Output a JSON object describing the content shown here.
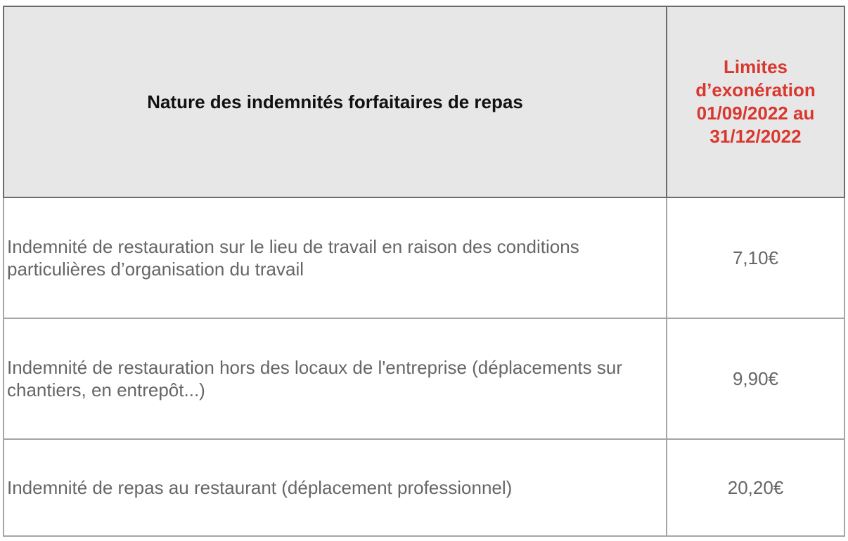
{
  "table": {
    "headers": [
      "Nature des indemnités forfaitaires de repas",
      "Limites d’exonération 01/09/2022 au 31/12/2022"
    ],
    "rows": [
      {
        "nature": "Indemnité de restauration sur le lieu de travail en raison des conditions particulières d’organisation du travail",
        "limit": "7,10€"
      },
      {
        "nature": "Indemnité de restauration hors des locaux de l'entreprise (déplacements sur chantiers, en entrepôt...)",
        "limit": "9,90€"
      },
      {
        "nature": "Indemnité de repas au restaurant (déplacement professionnel)",
        "limit": "20,20€"
      }
    ]
  },
  "colors": {
    "header_bg": "#e7e7e7",
    "accent_red": "#d9372f",
    "body_text": "#666666"
  }
}
